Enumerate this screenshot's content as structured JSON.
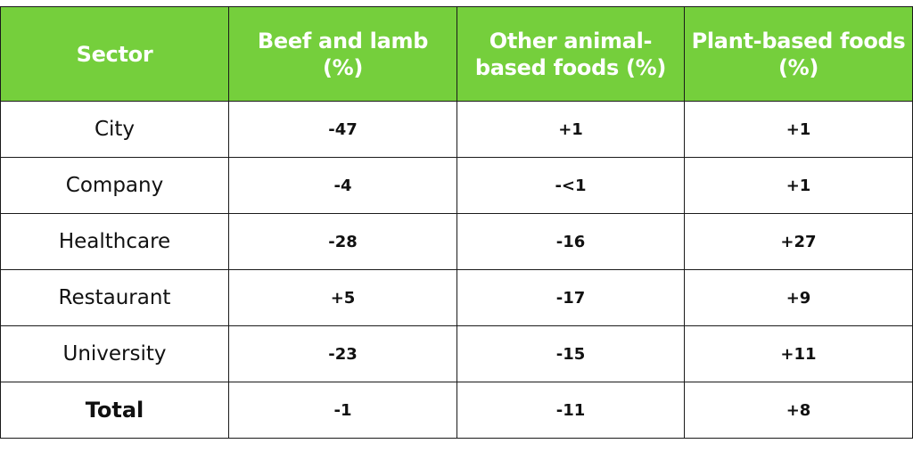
{
  "table": {
    "headers": [
      "Sector",
      "Beef and lamb (%)",
      "Other animal-based foods (%)",
      "Plant-based foods (%)"
    ],
    "rows": [
      {
        "sector": "City",
        "beef_lamb": "-47",
        "other_animal": "+1",
        "plant_based": "+1"
      },
      {
        "sector": "Company",
        "beef_lamb": "-4",
        "other_animal": "-<1",
        "plant_based": "+1"
      },
      {
        "sector": "Healthcare",
        "beef_lamb": "-28",
        "other_animal": "-16",
        "plant_based": "+27"
      },
      {
        "sector": "Restaurant",
        "beef_lamb": "+5",
        "other_animal": "-17",
        "plant_based": "+9"
      },
      {
        "sector": "University",
        "beef_lamb": "-23",
        "other_animal": "-15",
        "plant_based": "+11"
      }
    ],
    "total": {
      "sector": "Total",
      "beef_lamb": "-1",
      "other_animal": "-11",
      "plant_based": "+8"
    }
  },
  "colors": {
    "header_bg": "#75cf3c",
    "header_text": "#ffffff",
    "border": "#1a1a1a"
  }
}
